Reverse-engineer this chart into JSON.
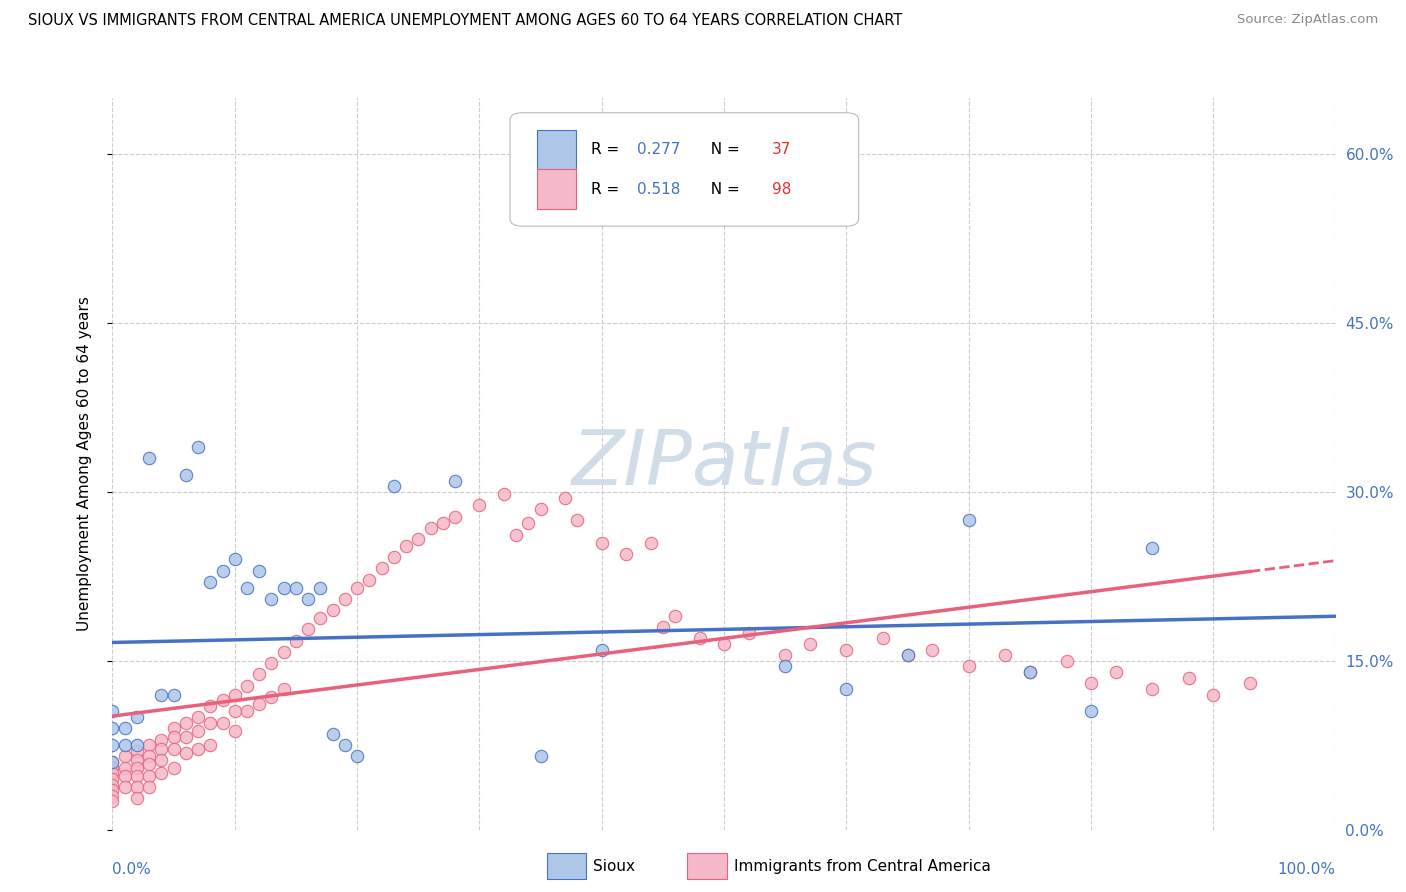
{
  "title": "SIOUX VS IMMIGRANTS FROM CENTRAL AMERICA UNEMPLOYMENT AMONG AGES 60 TO 64 YEARS CORRELATION CHART",
  "source": "Source: ZipAtlas.com",
  "ylabel": "Unemployment Among Ages 60 to 64 years",
  "xlim": [
    0.0,
    1.0
  ],
  "ylim": [
    0.0,
    0.65
  ],
  "y_ticks": [
    0.0,
    0.15,
    0.3,
    0.45,
    0.6
  ],
  "y_tick_labels_right": [
    "0.0%",
    "15.0%",
    "30.0%",
    "45.0%",
    "60.0%"
  ],
  "x_ticks": [
    0.0,
    0.1,
    0.2,
    0.3,
    0.4,
    0.5,
    0.6,
    0.7,
    0.8,
    0.9,
    1.0
  ],
  "sioux_R": 0.277,
  "sioux_N": 37,
  "immigrants_R": 0.518,
  "immigrants_N": 98,
  "sioux_color": "#aec6e8",
  "immigrants_color": "#f4b8c8",
  "sioux_line_color": "#4472c4",
  "immigrants_line_color": "#e8607a",
  "sioux_scatter_x": [
    0.0,
    0.0,
    0.0,
    0.0,
    0.01,
    0.01,
    0.02,
    0.02,
    0.03,
    0.04,
    0.05,
    0.06,
    0.07,
    0.08,
    0.09,
    0.1,
    0.11,
    0.12,
    0.13,
    0.14,
    0.15,
    0.16,
    0.17,
    0.18,
    0.19,
    0.2,
    0.23,
    0.28,
    0.35,
    0.4,
    0.55,
    0.6,
    0.65,
    0.7,
    0.75,
    0.8,
    0.85
  ],
  "sioux_scatter_y": [
    0.105,
    0.09,
    0.075,
    0.06,
    0.09,
    0.075,
    0.1,
    0.075,
    0.33,
    0.12,
    0.12,
    0.315,
    0.34,
    0.22,
    0.23,
    0.24,
    0.215,
    0.23,
    0.205,
    0.215,
    0.215,
    0.205,
    0.215,
    0.085,
    0.075,
    0.065,
    0.305,
    0.31,
    0.065,
    0.16,
    0.145,
    0.125,
    0.155,
    0.275,
    0.14,
    0.105,
    0.25
  ],
  "immigrants_scatter_x": [
    0.0,
    0.0,
    0.0,
    0.0,
    0.0,
    0.0,
    0.0,
    0.0,
    0.01,
    0.01,
    0.01,
    0.01,
    0.02,
    0.02,
    0.02,
    0.02,
    0.02,
    0.02,
    0.03,
    0.03,
    0.03,
    0.03,
    0.03,
    0.04,
    0.04,
    0.04,
    0.04,
    0.05,
    0.05,
    0.05,
    0.05,
    0.06,
    0.06,
    0.06,
    0.07,
    0.07,
    0.07,
    0.08,
    0.08,
    0.08,
    0.09,
    0.09,
    0.1,
    0.1,
    0.1,
    0.11,
    0.11,
    0.12,
    0.12,
    0.13,
    0.13,
    0.14,
    0.14,
    0.15,
    0.16,
    0.17,
    0.18,
    0.19,
    0.2,
    0.21,
    0.22,
    0.23,
    0.24,
    0.25,
    0.26,
    0.27,
    0.28,
    0.3,
    0.32,
    0.33,
    0.34,
    0.35,
    0.37,
    0.38,
    0.4,
    0.42,
    0.44,
    0.45,
    0.46,
    0.48,
    0.5,
    0.52,
    0.55,
    0.57,
    0.6,
    0.63,
    0.65,
    0.67,
    0.7,
    0.73,
    0.75,
    0.78,
    0.8,
    0.82,
    0.85,
    0.88,
    0.9,
    0.93
  ],
  "immigrants_scatter_y": [
    0.06,
    0.055,
    0.05,
    0.045,
    0.04,
    0.035,
    0.03,
    0.025,
    0.065,
    0.055,
    0.048,
    0.038,
    0.07,
    0.062,
    0.055,
    0.048,
    0.038,
    0.028,
    0.075,
    0.065,
    0.058,
    0.048,
    0.038,
    0.08,
    0.072,
    0.062,
    0.05,
    0.09,
    0.082,
    0.072,
    0.055,
    0.095,
    0.082,
    0.068,
    0.1,
    0.088,
    0.072,
    0.11,
    0.095,
    0.075,
    0.115,
    0.095,
    0.12,
    0.105,
    0.088,
    0.128,
    0.105,
    0.138,
    0.112,
    0.148,
    0.118,
    0.158,
    0.125,
    0.168,
    0.178,
    0.188,
    0.195,
    0.205,
    0.215,
    0.222,
    0.232,
    0.242,
    0.252,
    0.258,
    0.268,
    0.272,
    0.278,
    0.288,
    0.298,
    0.262,
    0.272,
    0.285,
    0.295,
    0.275,
    0.255,
    0.245,
    0.255,
    0.18,
    0.19,
    0.17,
    0.165,
    0.175,
    0.155,
    0.165,
    0.16,
    0.17,
    0.155,
    0.16,
    0.145,
    0.155,
    0.14,
    0.15,
    0.13,
    0.14,
    0.125,
    0.135,
    0.12,
    0.13
  ],
  "background_color": "#ffffff",
  "grid_color": "#cccccc",
  "watermark_color": "#d0dce8",
  "legend_R_color": "#4472c4",
  "legend_N_color": "#e03030"
}
